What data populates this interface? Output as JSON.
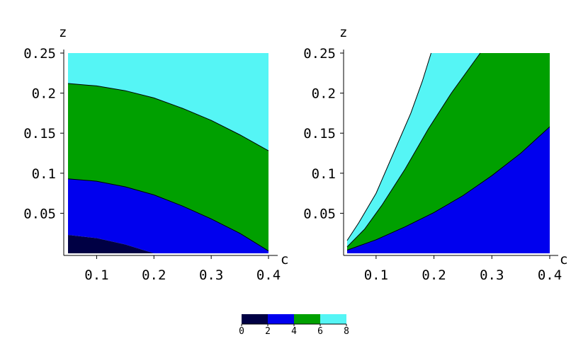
{
  "colors": {
    "band_0_2": "#000044",
    "band_2_4": "#0000ee",
    "band_4_6": "#00a000",
    "band_6_8": "#55f5f5",
    "outline": "#000000"
  },
  "chart_data": [
    {
      "type": "contour",
      "xlabel": "c",
      "ylabel": "z",
      "xlim": [
        0.05,
        0.4
      ],
      "ylim": [
        0.0,
        0.25
      ],
      "x_ticks": [
        {
          "value": 0.1,
          "label": "0.1"
        },
        {
          "value": 0.2,
          "label": "0.2"
        },
        {
          "value": 0.3,
          "label": "0.3"
        },
        {
          "value": 0.4,
          "label": "0.4"
        }
      ],
      "y_ticks": [
        {
          "value": 0.05,
          "label": "0.05"
        },
        {
          "value": 0.1,
          "label": "0.1"
        },
        {
          "value": 0.15,
          "label": "0.15"
        },
        {
          "value": 0.2,
          "label": "0.2"
        },
        {
          "value": 0.25,
          "label": "0.25"
        }
      ],
      "contours": [
        {
          "level": 2,
          "points": [
            [
              0.05,
              0.023
            ],
            [
              0.1,
              0.019
            ],
            [
              0.15,
              0.011
            ],
            [
              0.2,
              0.0
            ]
          ]
        },
        {
          "level": 4,
          "points": [
            [
              0.05,
              0.093
            ],
            [
              0.1,
              0.09
            ],
            [
              0.15,
              0.083
            ],
            [
              0.2,
              0.073
            ],
            [
              0.25,
              0.059
            ],
            [
              0.3,
              0.043
            ],
            [
              0.35,
              0.025
            ],
            [
              0.4,
              0.003
            ]
          ]
        },
        {
          "level": 6,
          "points": [
            [
              0.05,
              0.212
            ],
            [
              0.1,
              0.209
            ],
            [
              0.15,
              0.203
            ],
            [
              0.2,
              0.194
            ],
            [
              0.25,
              0.181
            ],
            [
              0.3,
              0.166
            ],
            [
              0.35,
              0.148
            ],
            [
              0.4,
              0.128
            ]
          ]
        }
      ],
      "region_note": "values increase with z"
    },
    {
      "type": "contour",
      "xlabel": "c",
      "ylabel": "z",
      "xlim": [
        0.05,
        0.4
      ],
      "ylim": [
        0.0,
        0.25
      ],
      "x_ticks": [
        {
          "value": 0.1,
          "label": "0.1"
        },
        {
          "value": 0.2,
          "label": "0.2"
        },
        {
          "value": 0.3,
          "label": "0.3"
        },
        {
          "value": 0.4,
          "label": "0.4"
        }
      ],
      "y_ticks": [
        {
          "value": 0.05,
          "label": "0.05"
        },
        {
          "value": 0.1,
          "label": "0.1"
        },
        {
          "value": 0.15,
          "label": "0.15"
        },
        {
          "value": 0.2,
          "label": "0.2"
        },
        {
          "value": 0.25,
          "label": "0.25"
        }
      ],
      "contours": [
        {
          "level": 4,
          "points": [
            [
              0.05,
              0.004
            ],
            [
              0.1,
              0.017
            ],
            [
              0.15,
              0.033
            ],
            [
              0.2,
              0.051
            ],
            [
              0.25,
              0.072
            ],
            [
              0.3,
              0.097
            ],
            [
              0.35,
              0.125
            ],
            [
              0.4,
              0.158
            ]
          ]
        },
        {
          "level": 6,
          "points": [
            [
              0.05,
              0.008
            ],
            [
              0.08,
              0.03
            ],
            [
              0.11,
              0.06
            ],
            [
              0.15,
              0.105
            ],
            [
              0.19,
              0.155
            ],
            [
              0.23,
              0.2
            ],
            [
              0.28,
              0.25
            ]
          ]
        },
        {
          "level": 8,
          "points": [
            [
              0.05,
              0.016
            ],
            [
              0.07,
              0.038
            ],
            [
              0.1,
              0.075
            ],
            [
              0.13,
              0.125
            ],
            [
              0.16,
              0.175
            ],
            [
              0.18,
              0.215
            ],
            [
              0.195,
              0.25
            ]
          ]
        }
      ],
      "region_note": "white region above level 8 contour"
    }
  ],
  "colorbar": {
    "ticks": [
      {
        "value": 0,
        "label": "0"
      },
      {
        "value": 2,
        "label": "2"
      },
      {
        "value": 4,
        "label": "4"
      },
      {
        "value": 6,
        "label": "6"
      },
      {
        "value": 8,
        "label": "8"
      }
    ],
    "range": [
      0,
      8
    ]
  }
}
